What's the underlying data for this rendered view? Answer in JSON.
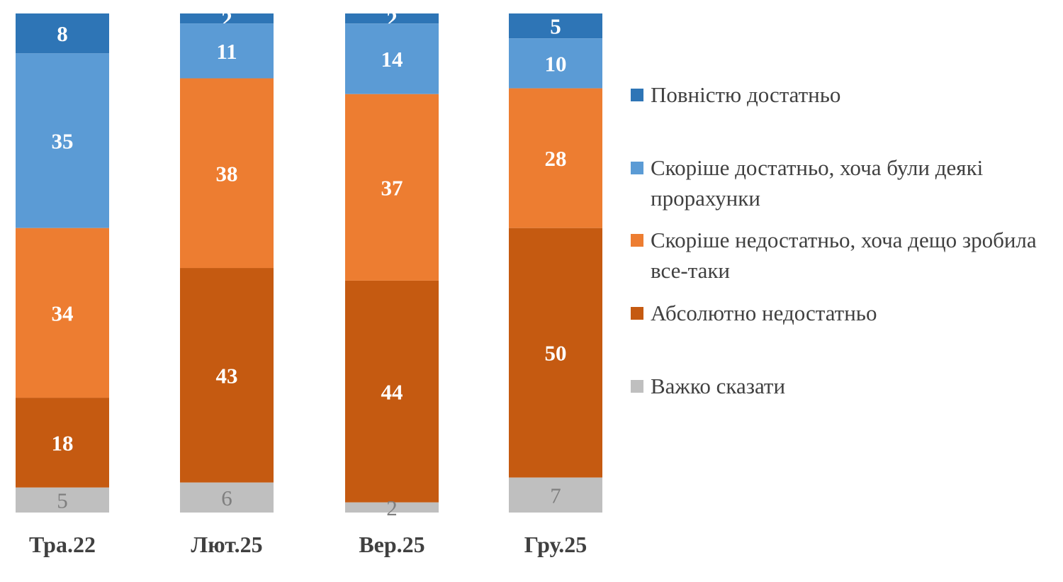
{
  "chart_data": {
    "type": "bar",
    "stacked": true,
    "normalized": true,
    "categories": [
      "Тра.22",
      "Лют.25",
      "Вер.25",
      "Гру.25"
    ],
    "series": [
      {
        "name": "Повністю достатньо",
        "color": "#2e75b6",
        "values": [
          8,
          2,
          2,
          5
        ]
      },
      {
        "name": "Скоріше достатньо, хоча були деякі прорахунки",
        "color": "#5b9bd5",
        "values": [
          35,
          11,
          14,
          10
        ]
      },
      {
        "name": "Скоріше недостатньо, хоча дещо зробила все-таки",
        "color": "#ed7d31",
        "values": [
          34,
          38,
          37,
          28
        ]
      },
      {
        "name": "Абсолютно недостатньо",
        "color": "#c55a11",
        "values": [
          18,
          43,
          44,
          50
        ]
      },
      {
        "name": "Важко сказати",
        "color": "#bfbfbf",
        "values": [
          5,
          6,
          2,
          7
        ]
      }
    ],
    "legend_position": "right",
    "grid": false
  }
}
